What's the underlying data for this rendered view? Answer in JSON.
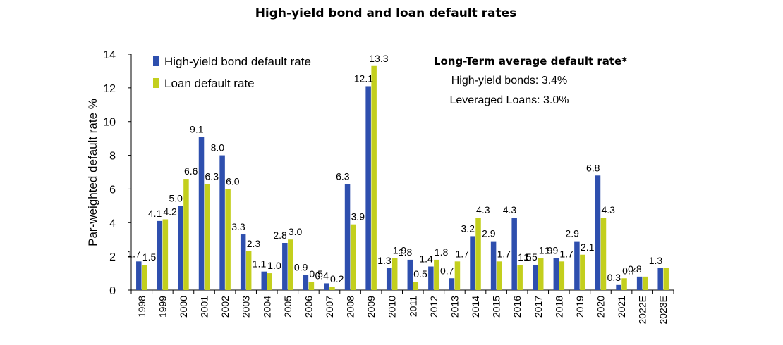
{
  "chart_data": {
    "type": "bar",
    "title": "High-yield bond and loan default rates",
    "ylabel": "Par-weighted default rate %",
    "xlabel": "",
    "ylim": [
      0,
      14
    ],
    "yticks": [
      "0",
      "2",
      "4",
      "6",
      "8",
      "10",
      "12",
      "14"
    ],
    "grid": false,
    "legend_position": "top-left",
    "categories": [
      "1998",
      "1999",
      "2000",
      "2001",
      "2002",
      "2003",
      "2004",
      "2005",
      "2006",
      "2007",
      "2008",
      "2009",
      "2010",
      "2011",
      "2012",
      "2013",
      "2014",
      "2015",
      "2016",
      "2017",
      "2018",
      "2019",
      "2020",
      "2021",
      "2022E",
      "2023E"
    ],
    "series": [
      {
        "name": "High-yield bond default rate",
        "color": "#2e4fae",
        "values": [
          1.7,
          4.1,
          5.0,
          9.1,
          8.0,
          3.3,
          1.1,
          2.8,
          0.9,
          0.4,
          6.3,
          12.1,
          1.3,
          1.8,
          1.4,
          0.7,
          3.2,
          2.9,
          4.3,
          1.5,
          1.9,
          2.9,
          6.8,
          0.3,
          0.8,
          1.3
        ],
        "labels": [
          "1.7",
          "4.1",
          "5.0",
          "9.1",
          "8.0",
          "3.3",
          "1.1",
          "2.8",
          "0.9",
          "0.4",
          "6.3",
          "12.1",
          "1.3",
          "1.8",
          "1.4",
          "0.7",
          "3.2",
          "2.9",
          "4.3",
          "1.5",
          "1.9",
          "2.9",
          "6.8",
          "0.3",
          "0.8",
          "1.3"
        ]
      },
      {
        "name": "Loan default rate",
        "color": "#c3cf1d",
        "values": [
          1.5,
          4.2,
          6.6,
          6.3,
          6.0,
          2.3,
          1.0,
          3.0,
          0.5,
          0.2,
          3.9,
          13.3,
          1.9,
          0.5,
          1.8,
          1.7,
          4.3,
          1.7,
          1.5,
          1.9,
          1.7,
          2.1,
          4.3,
          0.7,
          0.8,
          1.3
        ],
        "labels": [
          "1.5",
          "4.2",
          "6.6",
          "6.3",
          "6.0",
          "2.3",
          "1.0",
          "3.0",
          "0.5",
          "0.2",
          "3.9",
          "13.3",
          "1.9",
          "0.5",
          "1.8",
          "1.7",
          "4.3",
          "1.7",
          "1.5",
          "1.9",
          "1.7",
          "2.1",
          "4.3",
          "0.7",
          "",
          ""
        ]
      }
    ],
    "annotation": {
      "heading": "Long-Term average default rate*",
      "lines": [
        "High-yield bonds: 3.4%",
        "Leveraged Loans: 3.0%"
      ]
    }
  }
}
